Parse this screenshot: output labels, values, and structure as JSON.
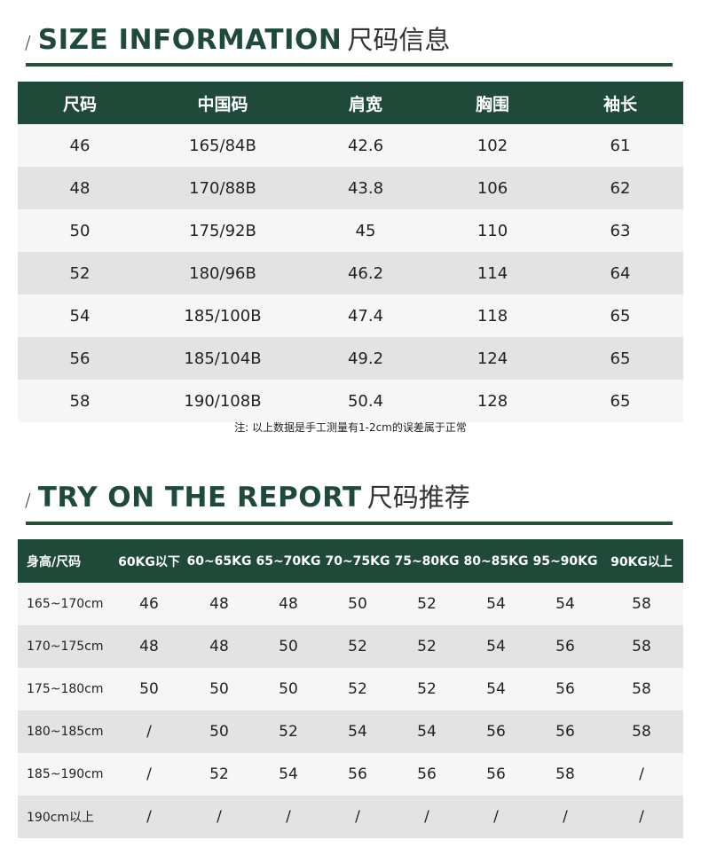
{
  "section1": {
    "slash": "/",
    "title_en": "SIZE INFORMATION",
    "title_cn": "尺码信息"
  },
  "size_table": {
    "headers": [
      "尺码",
      "中国码",
      "肩宽",
      "胸围",
      "袖长"
    ],
    "rows": [
      [
        "46",
        "165/84B",
        "42.6",
        "102",
        "61"
      ],
      [
        "48",
        "170/88B",
        "43.8",
        "106",
        "62"
      ],
      [
        "50",
        "175/92B",
        "45",
        "110",
        "63"
      ],
      [
        "52",
        "180/96B",
        "46.2",
        "114",
        "64"
      ],
      [
        "54",
        "185/100B",
        "47.4",
        "118",
        "65"
      ],
      [
        "56",
        "185/104B",
        "49.2",
        "124",
        "65"
      ],
      [
        "58",
        "190/108B",
        "50.4",
        "128",
        "65"
      ]
    ]
  },
  "note": "注:  以上数据是手工测量有1-2cm的误差属于正常",
  "section2": {
    "slash": "/",
    "title_en": "TRY ON THE REPORT",
    "title_cn": "尺码推荐"
  },
  "report_table": {
    "headers": [
      "身高/尺码",
      "60KG以下",
      "60~65KG",
      "65~70KG",
      "70~75KG",
      "75~80KG",
      "80~85KG",
      "95~90KG",
      "90KG以上"
    ],
    "rows": [
      [
        "165~170cm",
        "46",
        "48",
        "48",
        "50",
        "52",
        "54",
        "54",
        "58"
      ],
      [
        "170~175cm",
        "48",
        "48",
        "50",
        "52",
        "52",
        "54",
        "56",
        "58"
      ],
      [
        "175~180cm",
        "50",
        "50",
        "50",
        "52",
        "52",
        "54",
        "56",
        "58"
      ],
      [
        "180~185cm",
        "/",
        "50",
        "52",
        "54",
        "54",
        "56",
        "56",
        "58"
      ],
      [
        "185~190cm",
        "/",
        "52",
        "54",
        "56",
        "56",
        "56",
        "58",
        "/"
      ],
      [
        "190cm以上",
        "/",
        "/",
        "/",
        "/",
        "/",
        "/",
        "/",
        "/"
      ]
    ]
  },
  "colors": {
    "accent": "#1f4a3a",
    "row_light": "#f6f6f6",
    "row_dark": "#e3e3e3"
  }
}
